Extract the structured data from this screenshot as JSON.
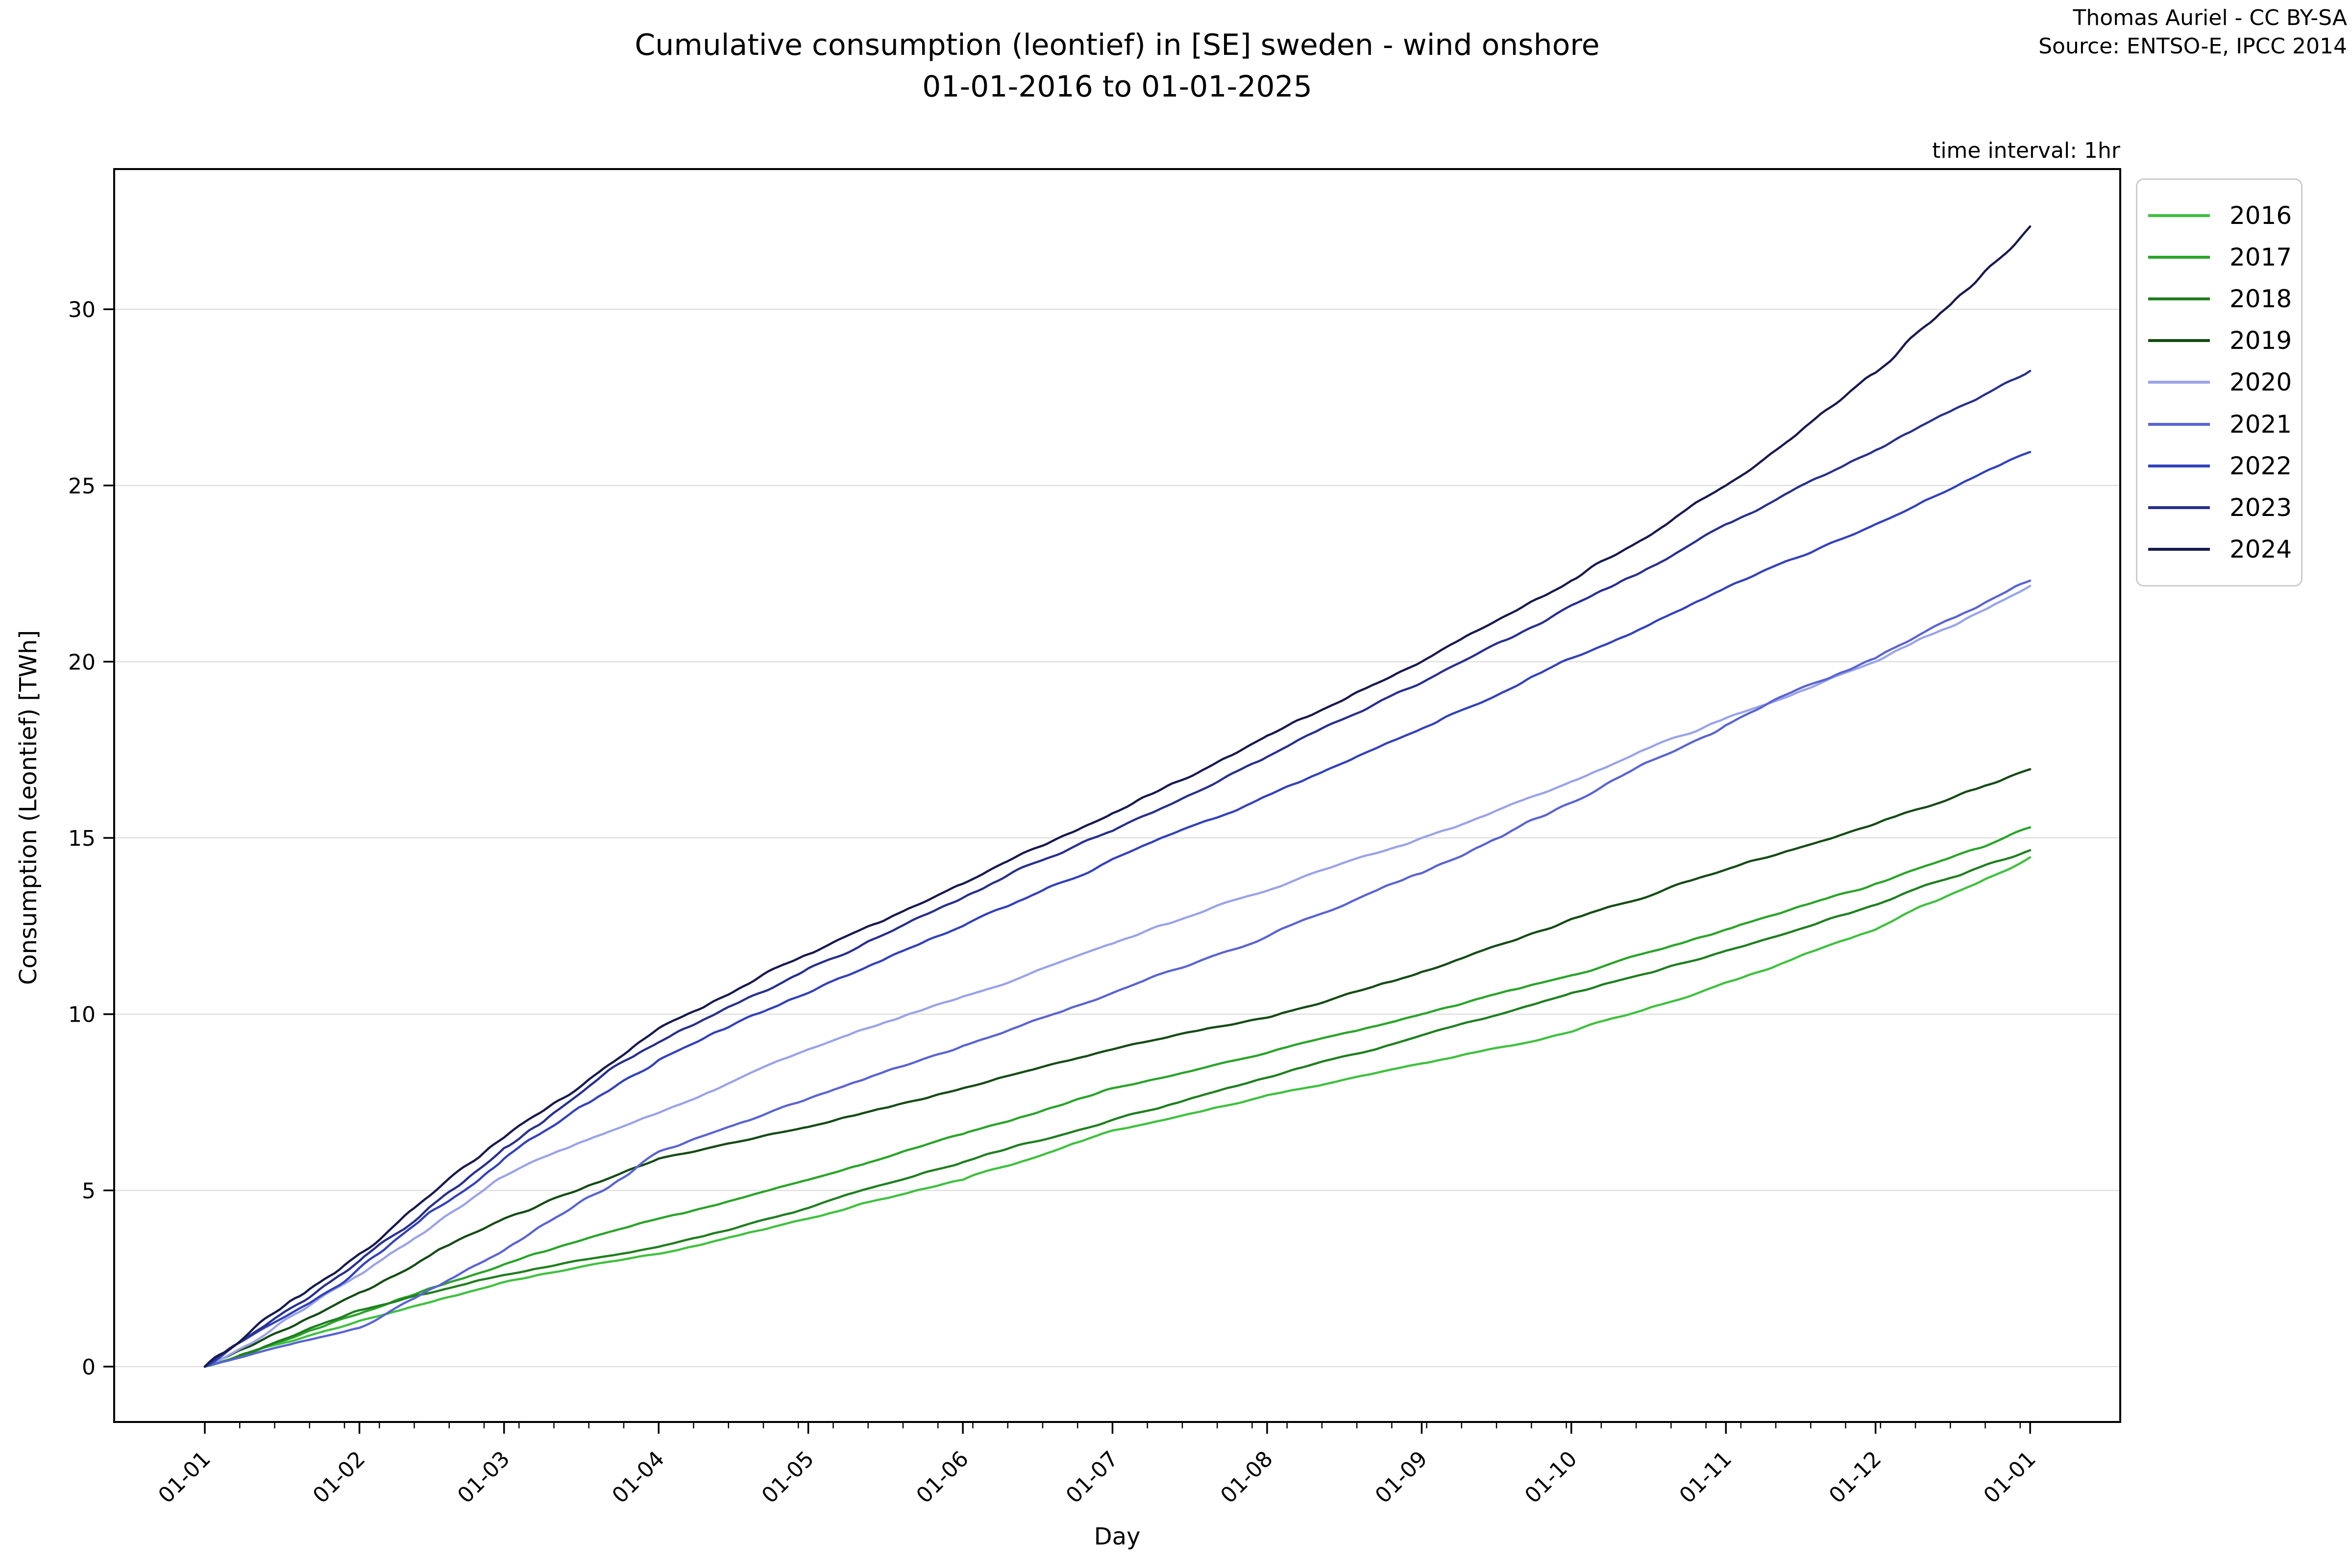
{
  "header": {
    "credit_line1": "Thomas Auriel - CC BY-SA",
    "credit_line2": "Source: ENTSO-E, IPCC 2014",
    "time_interval_note": "time interval: 1hr"
  },
  "chart_data": {
    "type": "line",
    "title_line1": "Cumulative consumption (leontief) in [SE] sweden - wind onshore",
    "title_line2": "01-01-2016 to 01-01-2025",
    "xlabel": "Day",
    "ylabel": "Consumption (Leontief) [TWh]",
    "grid": "horizontal",
    "legend_position": "upper right, outside axes",
    "y_ticks": [
      0,
      5,
      10,
      15,
      20,
      25,
      30
    ],
    "ylim": [
      -1.6,
      34.0
    ],
    "x_tick_labels": [
      "01-01",
      "01-02",
      "01-03",
      "01-04",
      "01-05",
      "01-06",
      "01-07",
      "01-08",
      "01-09",
      "01-10",
      "01-11",
      "01-12",
      "01-01"
    ],
    "x_month_start_days": [
      0,
      31,
      60,
      91,
      121,
      152,
      182,
      213,
      244,
      274,
      305,
      335,
      366
    ],
    "x_minor_tick_interval_days": 7,
    "units": "TWh",
    "series": [
      {
        "name": "2016",
        "color": "#3fc13f",
        "monthly_cumulative": [
          0,
          1.3,
          2.4,
          3.2,
          4.2,
          5.3,
          6.7,
          7.7,
          8.6,
          9.5,
          10.9,
          12.4,
          14.45
        ]
      },
      {
        "name": "2017",
        "color": "#2aa42a",
        "monthly_cumulative": [
          0,
          1.5,
          2.9,
          4.2,
          5.3,
          6.6,
          7.9,
          8.9,
          10.0,
          11.1,
          12.4,
          13.7,
          15.3
        ]
      },
      {
        "name": "2018",
        "color": "#1f7f1f",
        "monthly_cumulative": [
          0,
          1.6,
          2.6,
          3.4,
          4.5,
          5.8,
          7.0,
          8.2,
          9.4,
          10.6,
          11.8,
          13.1,
          14.65
        ]
      },
      {
        "name": "2019",
        "color": "#154c15",
        "monthly_cumulative": [
          0,
          2.1,
          4.2,
          5.9,
          6.8,
          7.9,
          9.0,
          9.9,
          11.2,
          12.7,
          14.1,
          15.4,
          16.95
        ]
      },
      {
        "name": "2020",
        "color": "#9aa3e8",
        "monthly_cumulative": [
          0,
          2.6,
          5.4,
          7.2,
          9.0,
          10.5,
          12.0,
          13.5,
          15.0,
          16.6,
          18.4,
          20.0,
          22.15
        ]
      },
      {
        "name": "2021",
        "color": "#5964d2",
        "monthly_cumulative": [
          0,
          1.1,
          3.3,
          6.1,
          7.6,
          9.1,
          10.6,
          12.2,
          14.0,
          16.0,
          18.2,
          20.1,
          22.3
        ]
      },
      {
        "name": "2022",
        "color": "#3242bc",
        "monthly_cumulative": [
          0,
          2.8,
          5.9,
          8.7,
          10.6,
          12.5,
          14.4,
          16.2,
          18.1,
          20.1,
          22.1,
          23.9,
          25.95
        ]
      },
      {
        "name": "2023",
        "color": "#27308f",
        "monthly_cumulative": [
          0,
          3.0,
          6.2,
          9.2,
          11.3,
          13.3,
          15.2,
          17.3,
          19.4,
          21.6,
          23.9,
          26.0,
          28.25
        ]
      },
      {
        "name": "2024",
        "color": "#161a4e",
        "monthly_cumulative": [
          0,
          3.2,
          6.5,
          9.6,
          11.7,
          13.7,
          15.7,
          17.9,
          20.0,
          22.3,
          25.0,
          28.2,
          32.35
        ]
      }
    ]
  }
}
